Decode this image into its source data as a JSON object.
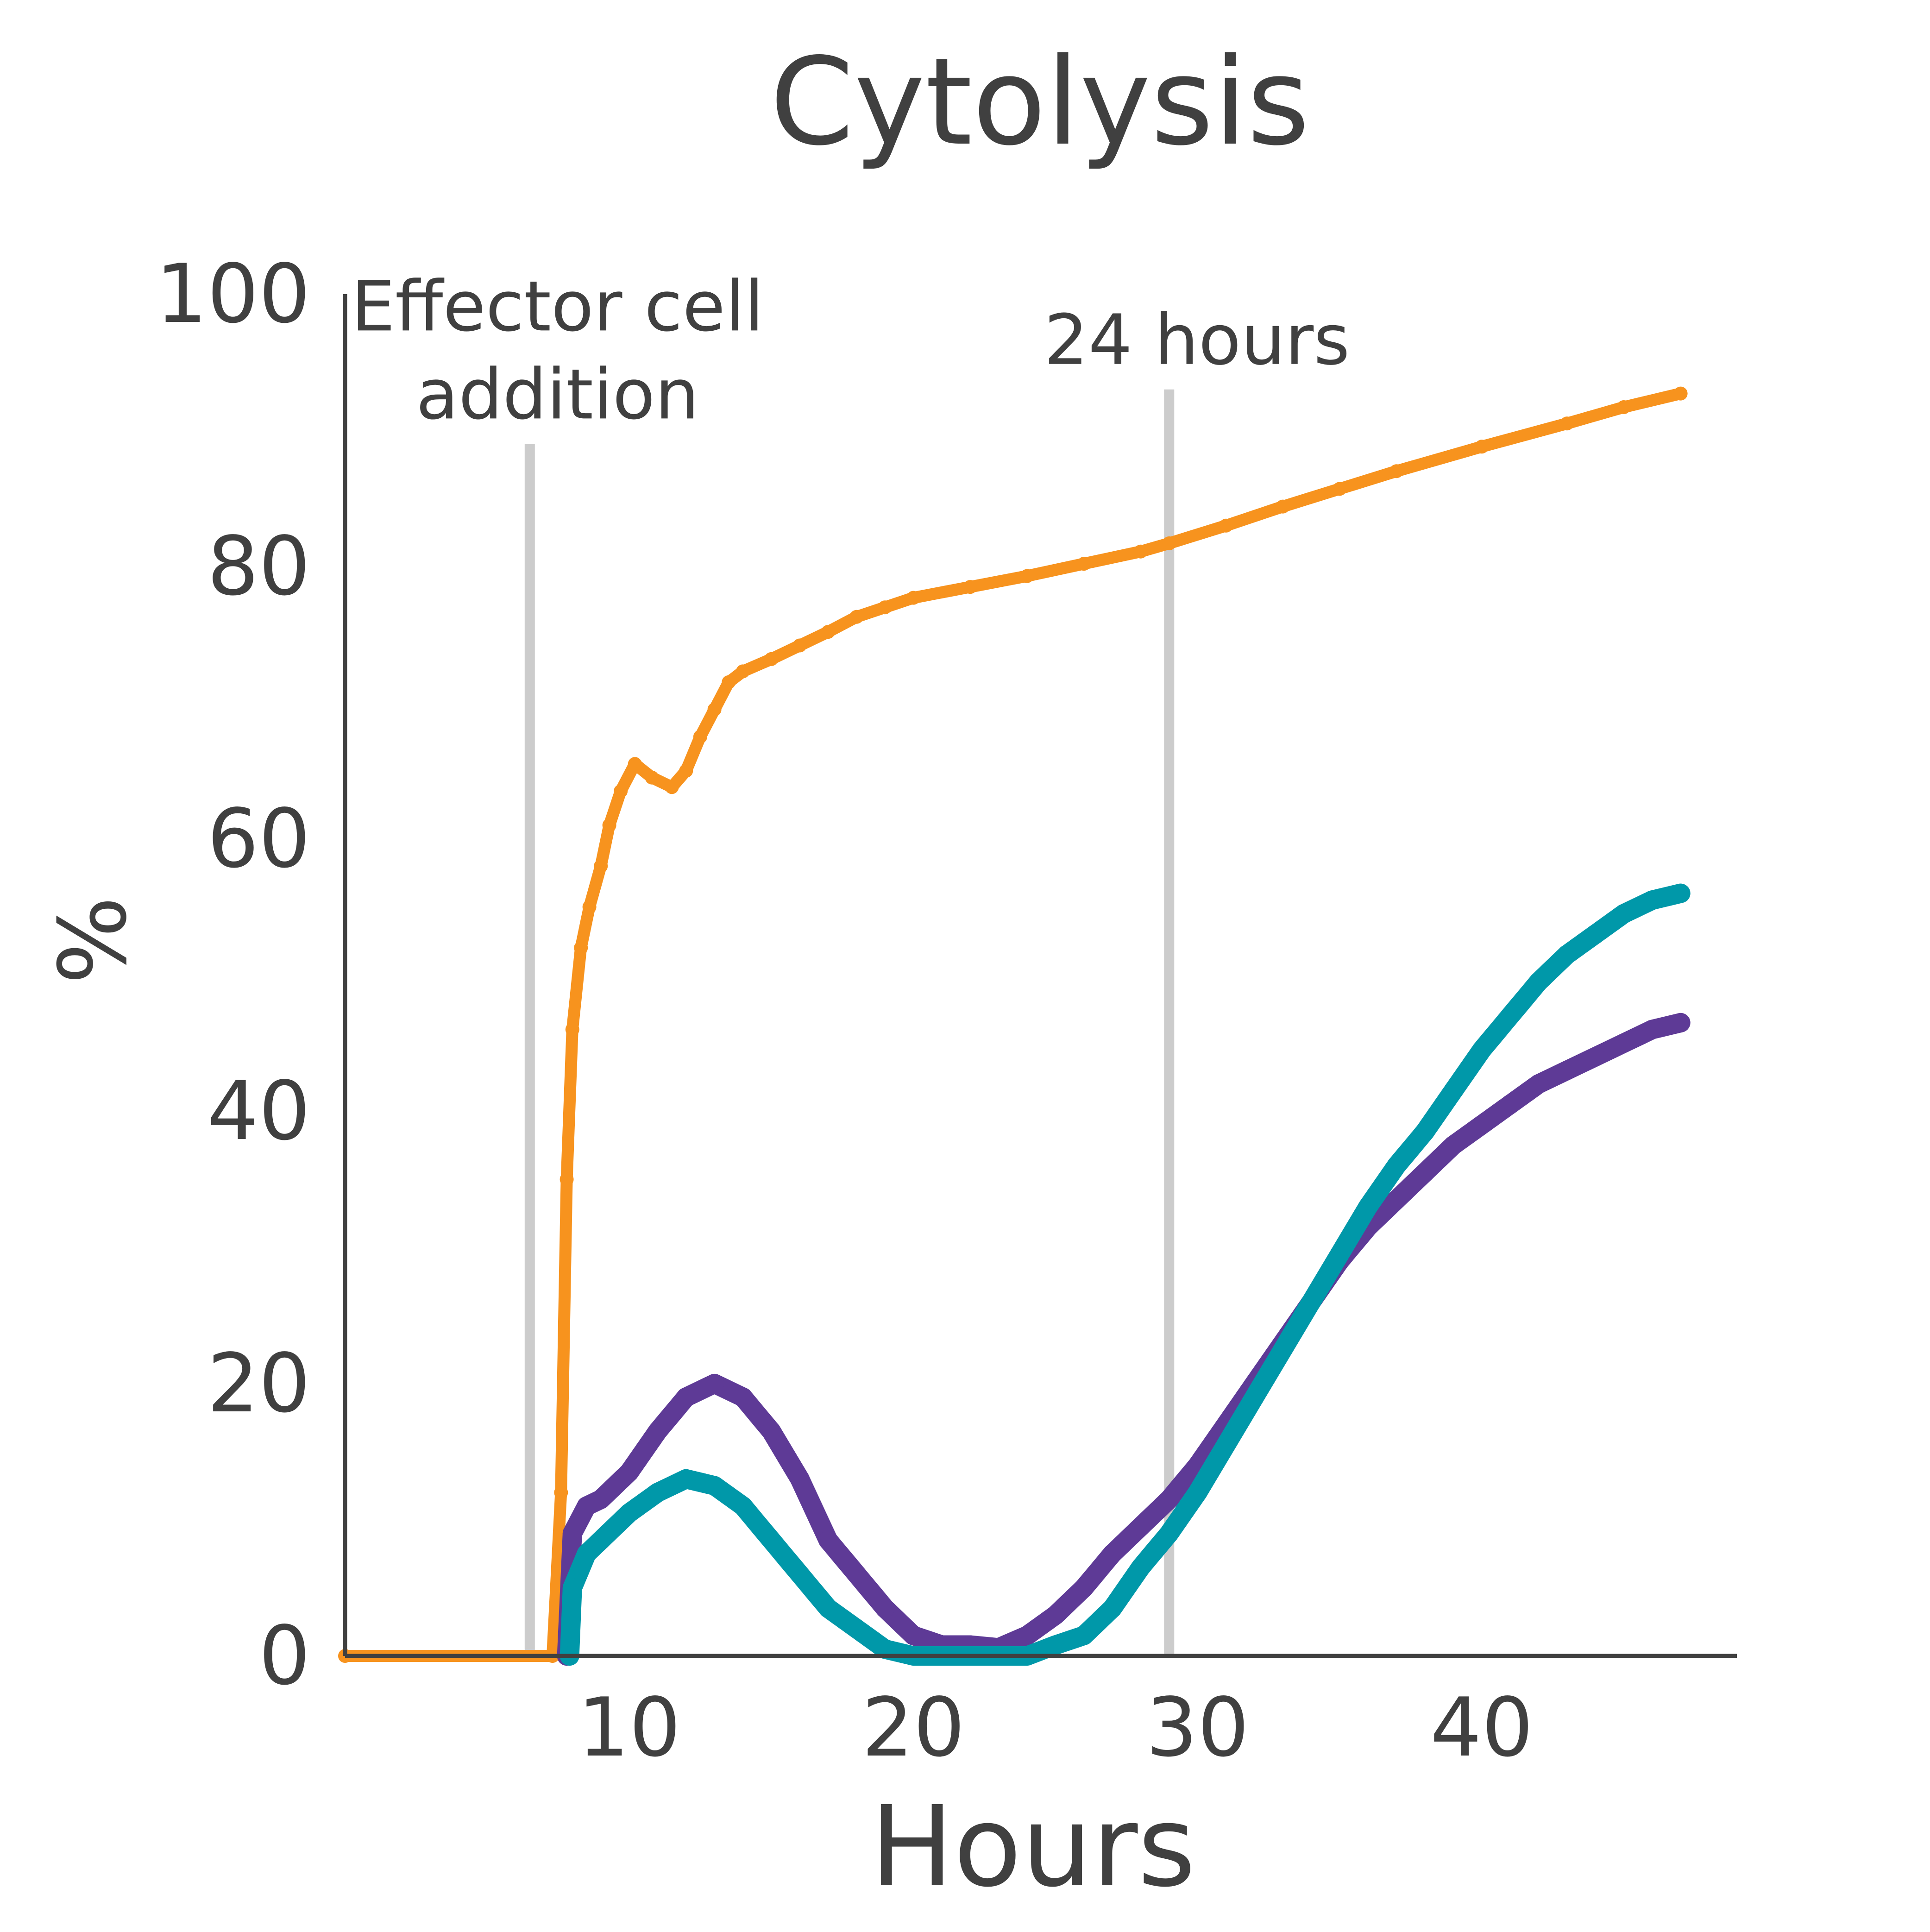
{
  "chart_data": {
    "type": "line",
    "title": "Cytolysis",
    "xlabel": "Hours",
    "ylabel": "%",
    "xlim": [
      0,
      48
    ],
    "ylim": [
      0,
      100
    ],
    "x_ticks": [
      10,
      20,
      30,
      40
    ],
    "y_ticks": [
      0,
      20,
      40,
      60,
      80,
      100
    ],
    "grid": false,
    "legend": "none",
    "annotations": [
      {
        "x": 6.5,
        "label_lines": [
          "Effector cell",
          "addition"
        ],
        "y_top": 89
      },
      {
        "x": 29,
        "label_lines": [
          "24 hours"
        ],
        "y_top": 93
      }
    ],
    "series": [
      {
        "color": "#f7931e",
        "x": [
          0,
          7.3,
          7.6,
          7.8,
          8.0,
          8.3,
          8.6,
          9.0,
          9.3,
          9.7,
          10.2,
          10.8,
          11.5,
          12.0,
          12.5,
          13.0,
          13.5,
          14.0,
          15.0,
          16.0,
          17.0,
          18.0,
          19.0,
          20.0,
          22.0,
          24.0,
          26.0,
          28.0,
          29.0,
          31.0,
          33.0,
          35.0,
          37.0,
          40.0,
          43.0,
          45.0,
          47.0
        ],
        "y": [
          0,
          0,
          12,
          35,
          46,
          52,
          55,
          58,
          61,
          63.5,
          65.5,
          64.5,
          63.8,
          65,
          67.5,
          69.5,
          71.5,
          72.3,
          73.2,
          74.2,
          75.2,
          76.3,
          77,
          77.7,
          78.5,
          79.3,
          80.2,
          81.1,
          81.7,
          83,
          84.4,
          85.7,
          87,
          88.8,
          90.5,
          91.7,
          92.7
        ]
      },
      {
        "color": "#5e3a96",
        "x": [
          7.8,
          8.0,
          8.5,
          9.0,
          10.0,
          11.0,
          12.0,
          13.0,
          14.0,
          15.0,
          16.0,
          17.0,
          18.0,
          19.0,
          20.0,
          21.0,
          22.0,
          23.0,
          24.0,
          25.0,
          26.0,
          27.0,
          28.0,
          29.0,
          30.0,
          31.0,
          32.0,
          33.0,
          34.0,
          35.0,
          36.0,
          37.0,
          38.0,
          39.0,
          40.0,
          41.0,
          42.0,
          43.0,
          44.0,
          45.0,
          46.0,
          47.0
        ],
        "y": [
          0,
          9,
          11,
          11.5,
          13.5,
          16.5,
          19,
          20,
          19,
          16.5,
          13,
          8.5,
          6,
          3.5,
          1.5,
          0.8,
          0.8,
          0.6,
          1.5,
          3,
          5,
          7.5,
          9.5,
          11.5,
          14,
          17,
          20,
          23,
          26,
          29,
          31.5,
          33.5,
          35.5,
          37.5,
          39,
          40.5,
          42,
          43,
          44,
          45,
          46,
          46.5
        ]
      },
      {
        "color": "#0098a9",
        "x": [
          7.9,
          8.0,
          8.5,
          9.0,
          10.0,
          11.0,
          12.0,
          13.0,
          14.0,
          15.0,
          16.0,
          17.0,
          18.0,
          19.0,
          20.0,
          21.0,
          22.0,
          23.0,
          24.0,
          25.0,
          26.0,
          27.0,
          28.0,
          29.0,
          30.0,
          31.0,
          32.0,
          33.0,
          34.0,
          35.0,
          36.0,
          37.0,
          38.0,
          39.0,
          40.0,
          41.0,
          42.0,
          43.0,
          44.0,
          45.0,
          46.0,
          47.0
        ],
        "y": [
          0,
          5,
          7.5,
          8.5,
          10.5,
          12,
          13,
          12.5,
          11,
          8.5,
          6,
          3.5,
          2,
          0.5,
          0,
          0,
          0,
          0,
          0,
          0.8,
          1.5,
          3.5,
          6.5,
          9,
          12,
          15.5,
          19,
          22.5,
          26,
          29.5,
          33,
          36,
          38.5,
          41.5,
          44.5,
          47,
          49.5,
          51.5,
          53,
          54.5,
          55.5,
          56
        ]
      }
    ]
  }
}
